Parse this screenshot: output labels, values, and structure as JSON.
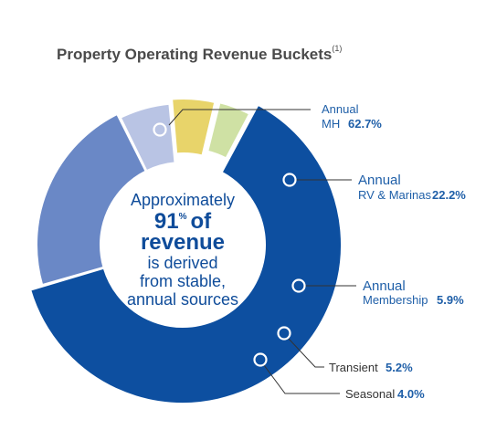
{
  "title": "Property Operating Revenue Buckets",
  "title_footnote": "(1)",
  "center": {
    "line1": "Approximately",
    "line2_value": "91",
    "line2_unit": "%",
    "line2_rest": "of",
    "line3": "revenue",
    "line4": "is derived",
    "line5": "from stable,",
    "line6": "annual sources"
  },
  "chart_data": {
    "type": "pie",
    "title": "Property Operating Revenue Buckets",
    "slices": [
      {
        "label_line1": "Annual",
        "label_line2": "MH",
        "value": 62.7,
        "pct_text": "62.7%",
        "color": "#0d4fa0"
      },
      {
        "label_line1": "Annual",
        "label_line2": "RV & Marinas",
        "value": 22.2,
        "pct_text": "22.2%",
        "color": "#6a88c6"
      },
      {
        "label_line1": "Annual",
        "label_line2": "Membership",
        "value": 5.9,
        "pct_text": "5.9%",
        "color": "#b9c4e4"
      },
      {
        "label_line1": "Transient",
        "label_line2": "",
        "value": 5.2,
        "pct_text": "5.2%",
        "color": "#e8d46a"
      },
      {
        "label_line1": "Seasonal",
        "label_line2": "",
        "value": 4.0,
        "pct_text": "4.0%",
        "color": "#cfe1a4"
      }
    ],
    "annotation": "Approximately 91% of revenue is derived from stable, annual sources"
  }
}
